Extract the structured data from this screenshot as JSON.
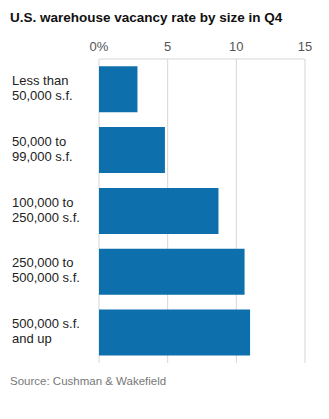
{
  "chart_data": {
    "type": "bar",
    "title": "U.S. warehouse vacancy rate by size in Q4",
    "subtitle": "Source: Cushman & Wakefield",
    "orientation": "horizontal",
    "categories": [
      "Less than 50,000 s.f.",
      "50,000 to 99,000 s.f.",
      "100,000 to 250,000 s.f.",
      "250,000 to 500,000 s.f.",
      "500,000 s.f. and up"
    ],
    "values": [
      2.8,
      4.8,
      8.7,
      10.6,
      11.0
    ],
    "color": "#0e6fad",
    "xlim": [
      0,
      15
    ],
    "xticks": [
      {
        "value": 0,
        "label": "0%"
      },
      5,
      10,
      15
    ],
    "grid": true
  }
}
